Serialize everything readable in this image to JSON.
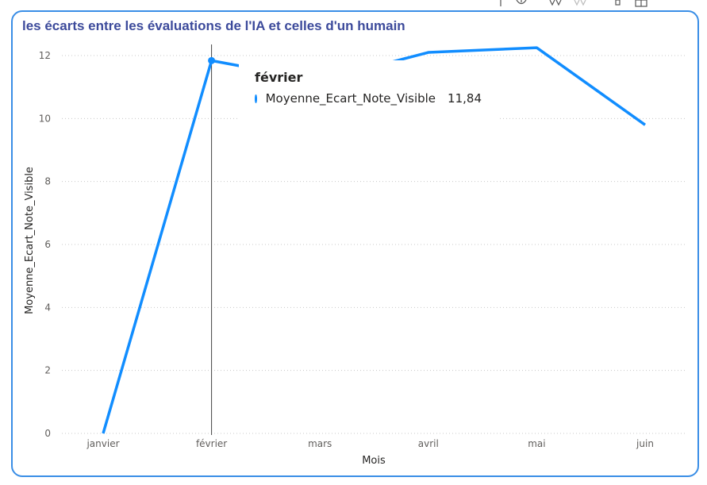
{
  "visual": {
    "title": "les écarts entre les évaluations de l'IA et celles d'un humain"
  },
  "toolbar": {
    "icons": [
      "drill-up-icon",
      "drill-down-icon",
      "expand-all-icon",
      "expand-all-disabled-icon",
      "pin-icon",
      "focus-mode-icon"
    ]
  },
  "tooltip": {
    "category": "février",
    "series_name": "Moyenne_Ecart_Note_Visible",
    "value": "11,84"
  },
  "colors": {
    "line": "#118dff",
    "title": "#3c4a9b",
    "border": "#3a8ee6"
  },
  "chart_data": {
    "type": "line",
    "title": "les écarts entre les évaluations de l'IA et celles d'un humain",
    "xlabel": "Mois",
    "ylabel": "Moyenne_Ecart_Note_Visible",
    "categories": [
      "janvier",
      "février",
      "mars",
      "avril",
      "mai",
      "juin"
    ],
    "series": [
      {
        "name": "Moyenne_Ecart_Note_Visible",
        "values": [
          0,
          11.84,
          11.2,
          12.1,
          12.25,
          9.8
        ]
      }
    ],
    "ylim": [
      0,
      12
    ],
    "yticks": [
      0,
      2,
      4,
      6,
      8,
      10,
      12
    ],
    "grid": true,
    "highlighted_category": "février"
  }
}
